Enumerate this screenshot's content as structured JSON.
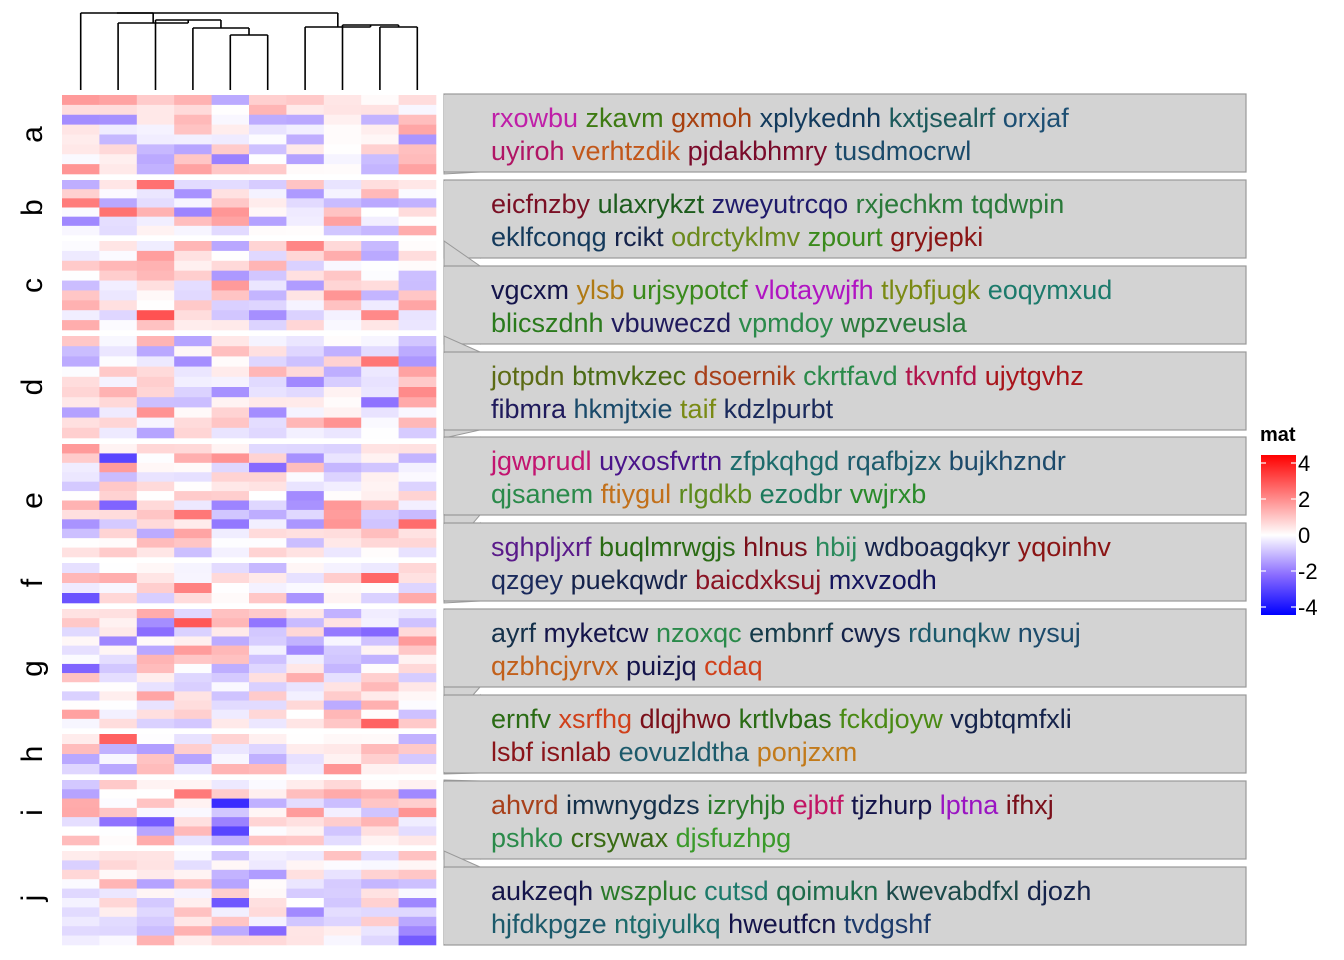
{
  "chart_data": {
    "type": "heatmap",
    "n_columns": 10,
    "row_groups": [
      {
        "label": "a",
        "rows": 8
      },
      {
        "label": "b",
        "rows": 6
      },
      {
        "label": "c",
        "rows": 9
      },
      {
        "label": "d",
        "rows": 10
      },
      {
        "label": "e",
        "rows": 12
      },
      {
        "label": "f",
        "rows": 4
      },
      {
        "label": "g",
        "rows": 13
      },
      {
        "label": "h",
        "rows": 4
      },
      {
        "label": "i",
        "rows": 7
      },
      {
        "label": "j",
        "rows": 10
      }
    ],
    "legend": {
      "title": "mat",
      "ticks": [
        "4",
        "2",
        "0",
        "-2",
        "-4"
      ],
      "range": [
        -4,
        4
      ],
      "colors": {
        "low": "#0000ff",
        "mid": "#ffffff",
        "high": "#ff0000"
      }
    },
    "text_boxes": [
      {
        "lines": [
          [
            {
              "w": "rxowbu",
              "c": "#bf1fa8"
            },
            {
              "w": "zkavm",
              "c": "#3d7a12"
            },
            {
              "w": "gxmoh",
              "c": "#a8400f"
            },
            {
              "w": "xplykednh",
              "c": "#123a5c"
            },
            {
              "w": "kxtjsealrf",
              "c": "#1c5a5c"
            },
            {
              "w": "orxjaf",
              "c": "#1d4f73"
            }
          ],
          [
            {
              "w": "uyiroh",
              "c": "#b01464"
            },
            {
              "w": "verhtzdik",
              "c": "#c2571a"
            },
            {
              "w": "pjdakbhmry",
              "c": "#7a0a2a"
            },
            {
              "w": "tusdmocrwl",
              "c": "#1a4a6a"
            }
          ]
        ]
      },
      {
        "lines": [
          [
            {
              "w": "eicfnzby",
              "c": "#7a0f24"
            },
            {
              "w": "ulaxrykzt",
              "c": "#1c5c1c"
            },
            {
              "w": "zweyutrcqo",
              "c": "#1f1a6b"
            },
            {
              "w": "rxjechkm",
              "c": "#2a7a3a"
            },
            {
              "w": "tqdwpin",
              "c": "#2a7a3a"
            }
          ],
          [
            {
              "w": "eklfconqg",
              "c": "#143a5c"
            },
            {
              "w": "rcikt",
              "c": "#14224a"
            },
            {
              "w": "odrctyklmv",
              "c": "#6b8a1c"
            },
            {
              "w": "zpourt",
              "c": "#3a8a1c"
            },
            {
              "w": "gryjepki",
              "c": "#8a1414"
            }
          ]
        ]
      },
      {
        "lines": [
          [
            {
              "w": "vgcxm",
              "c": "#14144a"
            },
            {
              "w": "ylsb",
              "c": "#b07a14"
            },
            {
              "w": "urjsypotcf",
              "c": "#3a8a1c"
            },
            {
              "w": "vlotaywjfh",
              "c": "#b014c2"
            },
            {
              "w": "tlybfjugk",
              "c": "#7a8a14"
            },
            {
              "w": "eoqymxud",
              "c": "#1c7a6b"
            }
          ],
          [
            {
              "w": "blicszdnh",
              "c": "#2a7a1c"
            },
            {
              "w": "vbuweczd",
              "c": "#1f1a5c"
            },
            {
              "w": "vpmdoy",
              "c": "#2a8a4a"
            },
            {
              "w": "wpzveusla",
              "c": "#2a7a3a"
            }
          ]
        ]
      },
      {
        "lines": [
          [
            {
              "w": "jotpdn",
              "c": "#5c6b14"
            },
            {
              "w": "btmvkzec",
              "c": "#4a6b14"
            },
            {
              "w": "dsoernik",
              "c": "#a8401a"
            },
            {
              "w": "ckrtfavd",
              "c": "#2a8a4a"
            },
            {
              "w": "tkvnfd",
              "c": "#b0144a"
            },
            {
              "w": "ujytgvhz",
              "c": "#a8141a"
            }
          ],
          [
            {
              "w": "fibmra",
              "c": "#1f1a5c"
            },
            {
              "w": "hkmjtxie",
              "c": "#1a4a6a"
            },
            {
              "w": "taif",
              "c": "#7a8a14"
            },
            {
              "w": "kdzlpurbt",
              "c": "#1a2a5c"
            }
          ]
        ]
      },
      {
        "lines": [
          [
            {
              "w": "jgwprudl",
              "c": "#c21470"
            },
            {
              "w": "uyxosfvrtn",
              "c": "#4a148a"
            },
            {
              "w": "zfpkqhgd",
              "c": "#1c6b6b"
            },
            {
              "w": "rqafbjzx",
              "c": "#1c5a6b"
            },
            {
              "w": "bujkhzndr",
              "c": "#1c4a6b"
            }
          ],
          [
            {
              "w": "qjsanem",
              "c": "#2a8a4a"
            },
            {
              "w": "ftiygul",
              "c": "#c2701a"
            },
            {
              "w": "rlgdkb",
              "c": "#5c8a1c"
            },
            {
              "w": "ezodbr",
              "c": "#1c7a5c"
            },
            {
              "w": "vwjrxb",
              "c": "#2a8a2a"
            }
          ]
        ]
      },
      {
        "lines": [
          [
            {
              "w": "sghpljxrf",
              "c": "#5a1a8a"
            },
            {
              "w": "buqlmrwgjs",
              "c": "#2a6b14"
            },
            {
              "w": "hlnus",
              "c": "#7a0f1a"
            },
            {
              "w": "hbij",
              "c": "#2a8a5c"
            },
            {
              "w": "wdboagqkyr",
              "c": "#14224a"
            },
            {
              "w": "yqoinhv",
              "c": "#8a1414"
            }
          ],
          [
            {
              "w": "qzgey",
              "c": "#1a2a5c"
            },
            {
              "w": "puekqwdr",
              "c": "#14224a"
            },
            {
              "w": "baicdxksuj",
              "c": "#8a1424"
            },
            {
              "w": "mxvzodh",
              "c": "#14145c"
            }
          ]
        ]
      },
      {
        "lines": [
          [
            {
              "w": "ayrf",
              "c": "#14304a"
            },
            {
              "w": "myketcw",
              "c": "#14144a"
            },
            {
              "w": "nzoxqc",
              "c": "#2a8a4a"
            },
            {
              "w": "embnrf",
              "c": "#143a4a"
            },
            {
              "w": "cwys",
              "c": "#14224a"
            },
            {
              "w": "rdunqkw",
              "c": "#1c5a6b"
            },
            {
              "w": "nysuj",
              "c": "#1c4a6b"
            }
          ],
          [
            {
              "w": "qzbhcjyrvx",
              "c": "#c2601a"
            },
            {
              "w": "puizjq",
              "c": "#14144a"
            },
            {
              "w": "cdaq",
              "c": "#d0401a"
            }
          ]
        ]
      },
      {
        "lines": [
          [
            {
              "w": "ernfv",
              "c": "#2a6b14"
            },
            {
              "w": "xsrfhg",
              "c": "#d0401a"
            },
            {
              "w": "dlqjhwo",
              "c": "#7a0f1a"
            },
            {
              "w": "krtlvbas",
              "c": "#2a6b14"
            },
            {
              "w": "fckdjoyw",
              "c": "#4a8a14"
            },
            {
              "w": "vgbtqmfxli",
              "c": "#14224a"
            }
          ],
          [
            {
              "w": "lsbf",
              "c": "#8a141a"
            },
            {
              "w": "isnlab",
              "c": "#8a141a"
            },
            {
              "w": "eovuzldtha",
              "c": "#1c5a6b"
            },
            {
              "w": "ponjzxm",
              "c": "#c27a1a"
            }
          ]
        ]
      },
      {
        "lines": [
          [
            {
              "w": "ahvrd",
              "c": "#a8401a"
            },
            {
              "w": "imwnygdzs",
              "c": "#14304a"
            },
            {
              "w": "izryhjb",
              "c": "#2a7a2a"
            },
            {
              "w": "ejbtf",
              "c": "#c21464"
            },
            {
              "w": "tjzhurp",
              "c": "#14144a"
            },
            {
              "w": "lptna",
              "c": "#9a14c2"
            },
            {
              "w": "ifhxj",
              "c": "#7a0f1a"
            }
          ],
          [
            {
              "w": "pshko",
              "c": "#2a8a4a"
            },
            {
              "w": "crsywax",
              "c": "#3a6b14"
            },
            {
              "w": "djsfuzhpg",
              "c": "#3a9a2a"
            }
          ]
        ]
      },
      {
        "lines": [
          [
            {
              "w": "aukzeqh",
              "c": "#14144a"
            },
            {
              "w": "wszpluc",
              "c": "#2a7a2a"
            },
            {
              "w": "cutsd",
              "c": "#1c7a6b"
            },
            {
              "w": "qoimukn",
              "c": "#1c6b4a"
            },
            {
              "w": "kwevabdfxl",
              "c": "#1c4a4a"
            },
            {
              "w": "djozh",
              "c": "#14224a"
            }
          ],
          [
            {
              "w": "hjfdkpgze",
              "c": "#1c5a6b"
            },
            {
              "w": "ntgiyulkq",
              "c": "#1c6b6b"
            },
            {
              "w": "hweutfcn",
              "c": "#14144a"
            },
            {
              "w": "tvdgshf",
              "c": "#1c3a6b"
            }
          ]
        ]
      }
    ]
  }
}
